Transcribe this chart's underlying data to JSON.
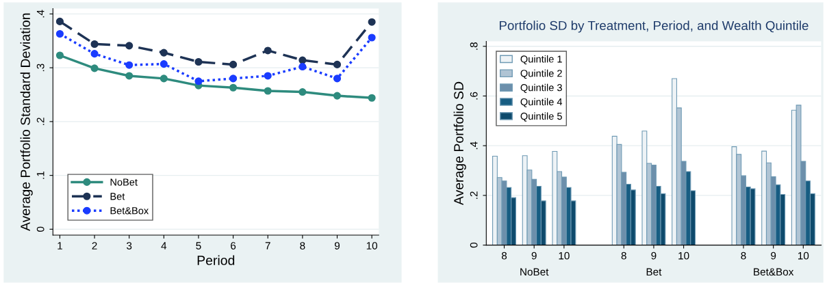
{
  "chart_data": [
    {
      "type": "line",
      "xlabel": "Period",
      "ylabel": "Average Portfolio Standard Deviation",
      "x": [
        1,
        2,
        3,
        4,
        5,
        6,
        7,
        8,
        9,
        10
      ],
      "xlim": [
        0.8,
        10.2
      ],
      "xticks": [
        1,
        2,
        3,
        4,
        5,
        6,
        7,
        8,
        9,
        10
      ],
      "ylim": [
        -0.011,
        0.41
      ],
      "yticks": [
        {
          "value": 0,
          "label": "0"
        },
        {
          "value": 0.1,
          "label": ".1"
        },
        {
          "value": 0.2,
          "label": ".2"
        },
        {
          "value": 0.3,
          "label": ".3"
        },
        {
          "value": 0.4,
          "label": ".4"
        }
      ],
      "grid": "y",
      "legend": "bottom left",
      "marker": "circle",
      "series": [
        {
          "name": "NoBet",
          "color": "#2e8b7e",
          "line_style": "solid",
          "values": [
            0.323,
            0.299,
            0.285,
            0.28,
            0.267,
            0.263,
            0.257,
            0.255,
            0.248,
            0.244
          ]
        },
        {
          "name": "Bet",
          "color": "#1e3355",
          "line_style": "dashed",
          "values": [
            0.386,
            0.344,
            0.341,
            0.328,
            0.311,
            0.306,
            0.332,
            0.314,
            0.306,
            0.385
          ]
        },
        {
          "name": "Bet&Box",
          "color": "#1a3cff",
          "line_style": "dotted",
          "values": [
            0.363,
            0.326,
            0.305,
            0.307,
            0.275,
            0.28,
            0.285,
            0.302,
            0.28,
            0.356
          ]
        }
      ]
    },
    {
      "type": "bar",
      "title": "Portfolio SD by Treatment, Period, and Wealth Quintile",
      "ylabel": "Average Portfolio SD",
      "categories": [
        "8",
        "9",
        "10",
        null,
        "8",
        "9",
        "10",
        null,
        "8",
        "9",
        "10"
      ],
      "annotations": [
        "NoBet",
        "Bet",
        "Bet&Box"
      ],
      "ylim": [
        0,
        0.82
      ],
      "yticks": [
        {
          "value": 0,
          "label": "0"
        },
        {
          "value": 0.2,
          "label": ".2"
        },
        {
          "value": 0.4,
          "label": ".4"
        },
        {
          "value": 0.6,
          "label": ".6"
        },
        {
          "value": 0.8,
          "label": ".8"
        }
      ],
      "grid": "y",
      "legend": "top left",
      "series": [
        {
          "name": "Quintile 1",
          "color": "#eef3f6",
          "values": [
            0.358,
            0.36,
            0.377,
            null,
            0.438,
            0.459,
            0.67,
            null,
            0.396,
            0.378,
            0.543
          ]
        },
        {
          "name": "Quintile 2",
          "color": "#b0c4d4",
          "values": [
            0.272,
            0.302,
            0.296,
            null,
            0.405,
            0.329,
            0.552,
            null,
            0.365,
            0.331,
            0.563
          ]
        },
        {
          "name": "Quintile 3",
          "color": "#6c8fab",
          "values": [
            0.258,
            0.265,
            0.274,
            null,
            0.293,
            0.322,
            0.337,
            null,
            0.279,
            0.275,
            0.337
          ]
        },
        {
          "name": "Quintile 4",
          "color": "#175d82",
          "values": [
            0.232,
            0.237,
            0.232,
            null,
            0.245,
            0.237,
            0.296,
            null,
            0.234,
            0.243,
            0.258
          ]
        },
        {
          "name": "Quintile 5",
          "color": "#0e4a6c",
          "values": [
            0.191,
            0.178,
            0.178,
            null,
            0.222,
            0.207,
            0.219,
            null,
            0.227,
            0.204,
            0.207
          ]
        }
      ]
    }
  ]
}
